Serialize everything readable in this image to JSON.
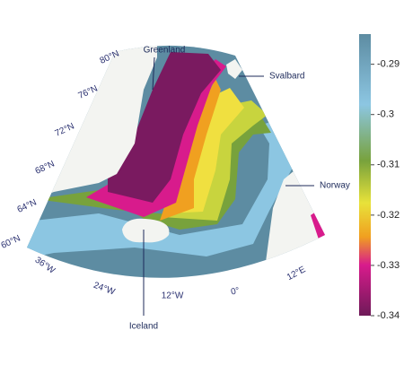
{
  "places": {
    "greenland": "Greenland",
    "svalbard": "Svalbard",
    "norway": "Norway",
    "iceland": "Iceland"
  },
  "latitude_labels": [
    "80°N",
    "76°N",
    "72°N",
    "68°N",
    "64°N",
    "60°N"
  ],
  "longitude_labels": [
    "36°W",
    "24°W",
    "12°W",
    "0°",
    "12°E"
  ],
  "colorbar": {
    "lim": [
      -0.34,
      -0.284
    ],
    "ticks": [
      -0.29,
      -0.3,
      -0.31,
      -0.32,
      -0.33,
      -0.34
    ]
  }
}
